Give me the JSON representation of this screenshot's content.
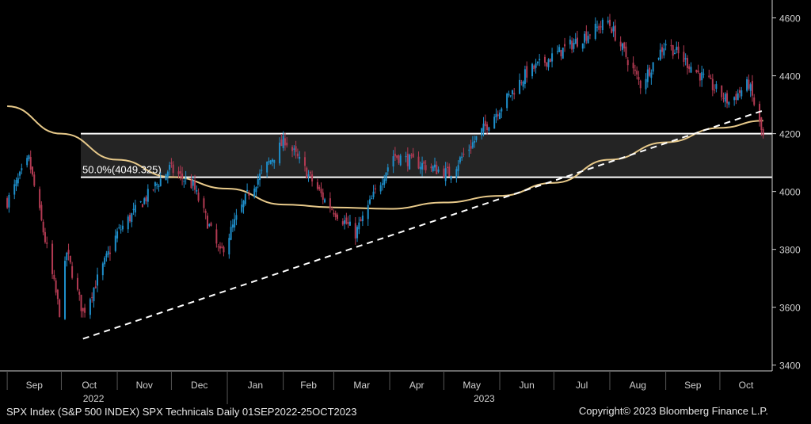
{
  "chart_data": {
    "type": "candlestick",
    "y_ticks": [
      "4600",
      "4400",
      "4200",
      "4000",
      "3800",
      "3600",
      "3400"
    ],
    "ylim": [
      3380,
      4640
    ],
    "x_ticks": [
      "Sep",
      "Oct",
      "Nov",
      "Dec",
      "Jan",
      "Feb",
      "Mar",
      "Apr",
      "May",
      "Jun",
      "Jul",
      "Aug",
      "Sep",
      "Oct"
    ],
    "year_labels": [
      "2022",
      "2023"
    ],
    "retracement_label": "50.0%(4049.325)",
    "zone": {
      "upper": 4200,
      "lower": 4049.325
    },
    "trendline": {
      "start": {
        "date": "2022-10-13",
        "value": 3491
      },
      "end": {
        "date": "2023-10-25",
        "value": 4280
      }
    },
    "moving_average_points": [
      {
        "date": "2022-09-01",
        "value": 4295
      },
      {
        "date": "2022-10-01",
        "value": 4200
      },
      {
        "date": "2022-11-01",
        "value": 4110
      },
      {
        "date": "2022-12-01",
        "value": 4050
      },
      {
        "date": "2023-01-01",
        "value": 4010
      },
      {
        "date": "2023-02-01",
        "value": 3955
      },
      {
        "date": "2023-03-01",
        "value": 3945
      },
      {
        "date": "2023-04-01",
        "value": 3940
      },
      {
        "date": "2023-05-01",
        "value": 3962
      },
      {
        "date": "2023-06-01",
        "value": 3985
      },
      {
        "date": "2023-07-01",
        "value": 4030
      },
      {
        "date": "2023-08-01",
        "value": 4110
      },
      {
        "date": "2023-09-01",
        "value": 4170
      },
      {
        "date": "2023-10-01",
        "value": 4220
      },
      {
        "date": "2023-10-25",
        "value": 4245
      }
    ],
    "close_anchors": [
      {
        "date": "2022-09-01",
        "value": 3966
      },
      {
        "date": "2022-09-13",
        "value": 4110
      },
      {
        "date": "2022-09-30",
        "value": 3585
      },
      {
        "date": "2022-10-04",
        "value": 3790
      },
      {
        "date": "2022-10-13",
        "value": 3580
      },
      {
        "date": "2022-11-01",
        "value": 3856
      },
      {
        "date": "2022-11-30",
        "value": 4080
      },
      {
        "date": "2022-12-13",
        "value": 4020
      },
      {
        "date": "2022-12-28",
        "value": 3783
      },
      {
        "date": "2023-01-13",
        "value": 3999
      },
      {
        "date": "2023-02-02",
        "value": 4180
      },
      {
        "date": "2023-02-24",
        "value": 3970
      },
      {
        "date": "2023-03-13",
        "value": 3855
      },
      {
        "date": "2023-04-03",
        "value": 4125
      },
      {
        "date": "2023-05-04",
        "value": 4062
      },
      {
        "date": "2023-06-16",
        "value": 4410
      },
      {
        "date": "2023-07-31",
        "value": 4589
      },
      {
        "date": "2023-08-18",
        "value": 4370
      },
      {
        "date": "2023-09-01",
        "value": 4515
      },
      {
        "date": "2023-10-06",
        "value": 4309
      },
      {
        "date": "2023-10-17",
        "value": 4373
      },
      {
        "date": "2023-10-25",
        "value": 4186
      }
    ],
    "x_range": [
      "2022-08-28",
      "2023-10-30"
    ]
  },
  "footer": {
    "left": "SPX Index (S&P 500 INDEX) SPX Technicals  Daily 01SEP2022-25OCT2023",
    "right": "Copyright© 2023 Bloomberg Finance L.P."
  },
  "colors": {
    "up": "#1e8fcb",
    "down": "#b23a52",
    "ma": "#e7c98a",
    "zone": "#242424",
    "zone_border": "#ffffff",
    "trendline": "#ffffff",
    "axis": "#cfcfcf"
  }
}
